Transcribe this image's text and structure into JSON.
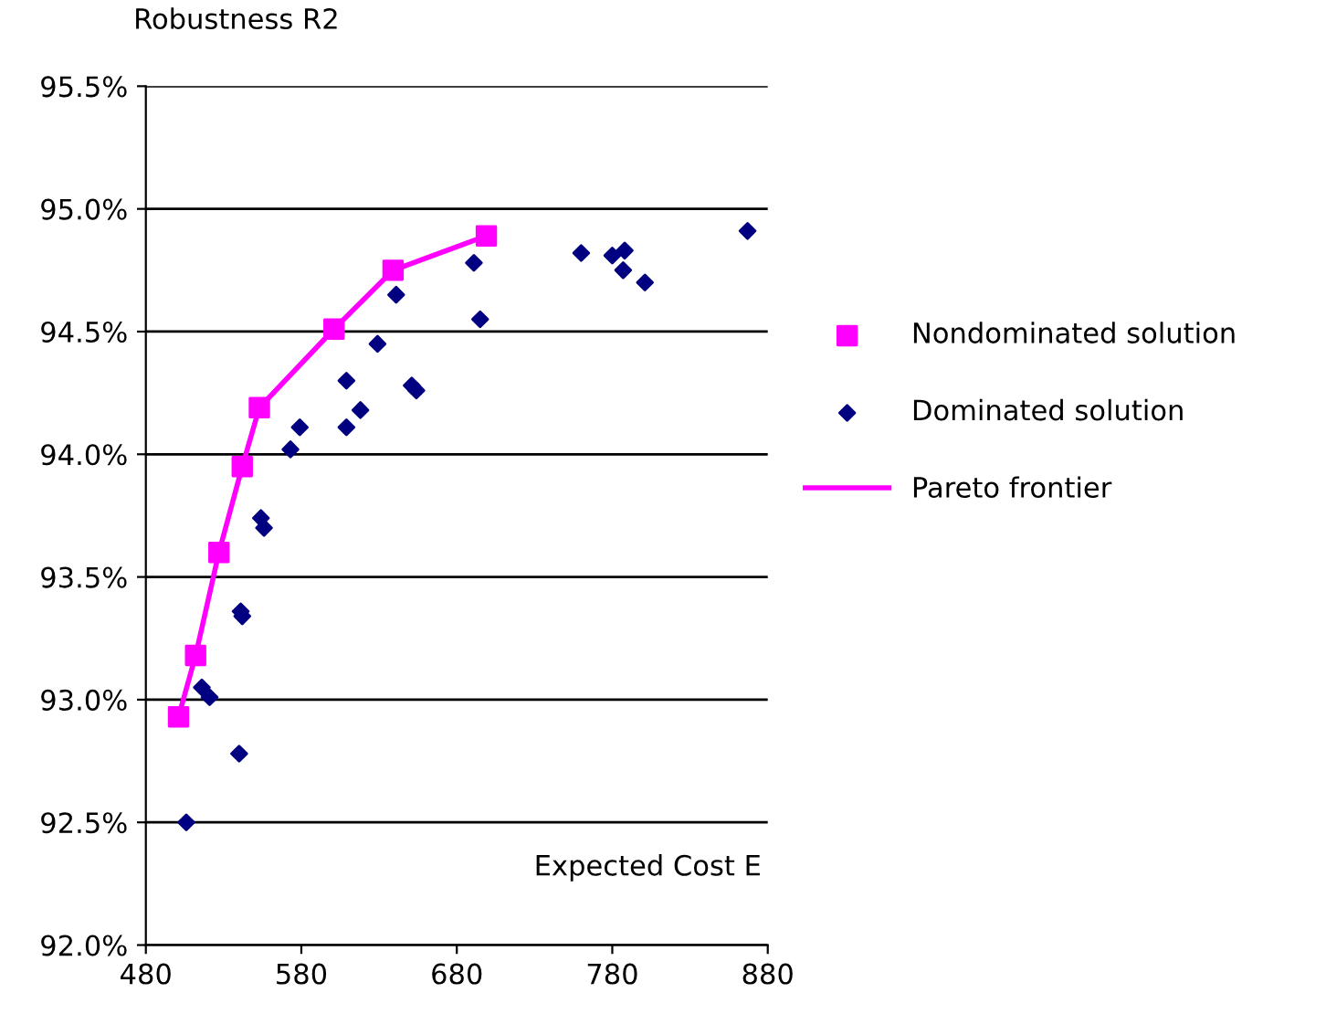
{
  "chart_data": {
    "type": "scatter",
    "xlabel": "Expected Cost E",
    "ylabel": "Robustness R2",
    "xlim": [
      480,
      880
    ],
    "xticks": [
      480,
      580,
      680,
      780,
      880
    ],
    "ylim": [
      92.0,
      95.5
    ],
    "yticks": [
      {
        "value": 92.0,
        "label": "92.0%"
      },
      {
        "value": 92.5,
        "label": "92.5%"
      },
      {
        "value": 93.0,
        "label": "93.0%"
      },
      {
        "value": 93.5,
        "label": "93.5%"
      },
      {
        "value": 94.0,
        "label": "94.0%"
      },
      {
        "value": 94.5,
        "label": "94.5%"
      },
      {
        "value": 95.0,
        "label": "95.0%"
      },
      {
        "value": 95.5,
        "label": "95.5%"
      }
    ],
    "grid": "y",
    "legend": "right",
    "series": [
      {
        "name": "Nondominated solution",
        "marker": "square",
        "color": "#ff00ff",
        "x": [
          501,
          512,
          527,
          542,
          553,
          601,
          639,
          699
        ],
        "values": [
          92.93,
          93.18,
          93.6,
          93.95,
          94.19,
          94.51,
          94.75,
          94.89
        ]
      },
      {
        "name": "Dominated solution",
        "marker": "diamond",
        "color": "#000080",
        "x": [
          506,
          516,
          521,
          540,
          541,
          542,
          554,
          556,
          573,
          579,
          609,
          609,
          618,
          629,
          641,
          651,
          654,
          691,
          695,
          760,
          780,
          788,
          787,
          801,
          867
        ],
        "values": [
          92.5,
          93.05,
          93.01,
          92.78,
          93.36,
          93.34,
          93.74,
          93.7,
          94.02,
          94.11,
          94.11,
          94.3,
          94.18,
          94.45,
          94.65,
          94.28,
          94.26,
          94.78,
          94.55,
          94.82,
          94.81,
          94.83,
          94.75,
          94.7,
          94.91
        ]
      },
      {
        "name": "Pareto frontier",
        "type": "line",
        "marker": "none",
        "line_style": "solid",
        "color": "#ff00ff",
        "x": [
          501,
          512,
          527,
          542,
          553,
          601,
          639,
          699
        ],
        "values": [
          92.93,
          93.18,
          93.6,
          93.95,
          94.19,
          94.51,
          94.75,
          94.89
        ]
      }
    ]
  }
}
